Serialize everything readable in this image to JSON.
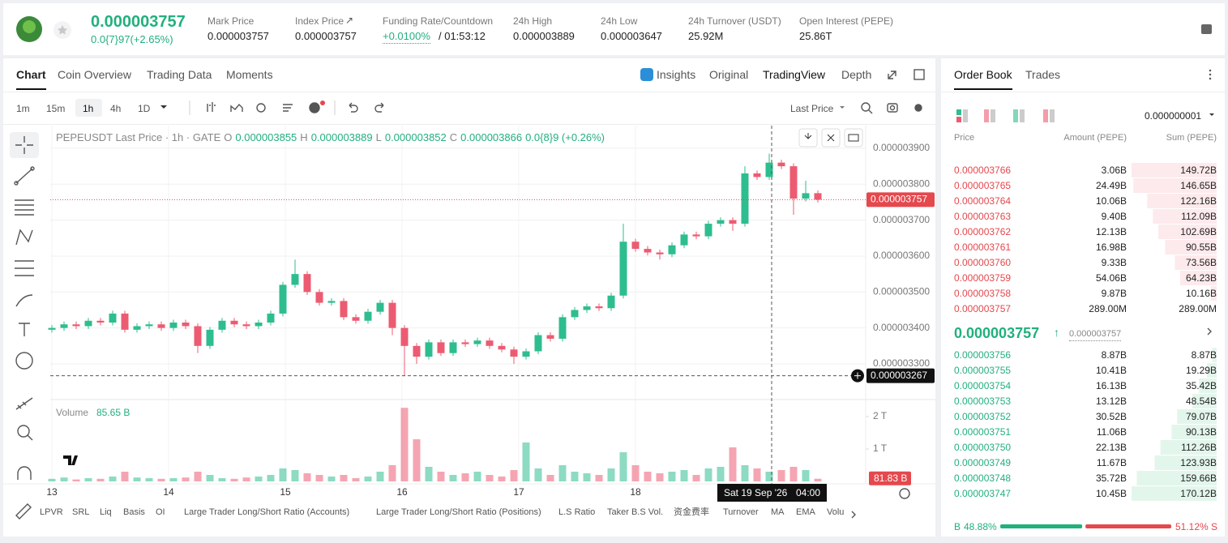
{
  "header": {
    "price": "0.000003757",
    "change": "0.0{7}97(+2.65%)",
    "stats": [
      {
        "label": "Mark Price",
        "value": "0.000003757"
      },
      {
        "label": "Index Price",
        "value": "0.000003757"
      },
      {
        "label": "Funding Rate/Countdown",
        "value": "+0.0100%",
        "countdown": "/ 01:53:12"
      },
      {
        "label": "24h High",
        "value": "0.000003889"
      },
      {
        "label": "24h Low",
        "value": "0.000003647"
      },
      {
        "label": "24h Turnover (USDT)",
        "value": "25.92M"
      },
      {
        "label": "Open Interest (PEPE)",
        "value": "25.86T"
      }
    ]
  },
  "chart_tabs": [
    "Chart",
    "Coin Overview",
    "Trading Data",
    "Moments"
  ],
  "chart_views": [
    "Insights",
    "Original",
    "TradingView",
    "Depth"
  ],
  "intervals": [
    "1m",
    "15m",
    "1h",
    "4h",
    "1D"
  ],
  "price_type": "Last Price",
  "legend": {
    "title": "PEPEUSDT Last Price · 1h · GATE",
    "ohlc": [
      {
        "key": "O",
        "value": "0.000003855"
      },
      {
        "key": "H",
        "value": "0.000003889"
      },
      {
        "key": "L",
        "value": "0.000003852"
      },
      {
        "key": "C",
        "value": "0.000003866"
      }
    ],
    "change": "0.0{8}9 (+0.26%)"
  },
  "volume_legend": {
    "label": "Volume",
    "value": "85.65 B"
  },
  "chart_data": {
    "type": "candlestick",
    "up_color": "#2ebd8f",
    "down_color": "#ec5b72",
    "open": [
      3.395e-06,
      3.4e-06,
      3.41e-06,
      3.405e-06,
      3.42e-06,
      3.415e-06,
      3.44e-06,
      3.395e-06,
      3.405e-06,
      3.41e-06,
      3.4e-06,
      3.415e-06,
      3.405e-06,
      3.35e-06,
      3.395e-06,
      3.42e-06,
      3.41e-06,
      3.405e-06,
      3.415e-06,
      3.44e-06,
      3.52e-06,
      3.55e-06,
      3.5e-06,
      3.47e-06,
      3.475e-06,
      3.43e-06,
      3.42e-06,
      3.445e-06,
      3.47e-06,
      3.4e-06,
      3.35e-06,
      3.32e-06,
      3.36e-06,
      3.33e-06,
      3.36e-06,
      3.355e-06,
      3.365e-06,
      3.35e-06,
      3.34e-06,
      3.32e-06,
      3.335e-06,
      3.38e-06,
      3.37e-06,
      3.43e-06,
      3.45e-06,
      3.46e-06,
      3.455e-06,
      3.49e-06,
      3.64e-06,
      3.62e-06,
      3.61e-06,
      3.605e-06,
      3.63e-06,
      3.66e-06,
      3.655e-06,
      3.69e-06,
      3.7e-06,
      3.69e-06,
      3.83e-06,
      3.82e-06,
      3.86e-06,
      3.85e-06,
      3.76e-06,
      3.775e-06
    ],
    "high": [
      3.408e-06,
      3.418e-06,
      3.418e-06,
      3.428e-06,
      3.428e-06,
      3.448e-06,
      3.448e-06,
      3.413e-06,
      3.418e-06,
      3.418e-06,
      3.423e-06,
      3.423e-06,
      3.413e-06,
      3.403e-06,
      3.428e-06,
      3.428e-06,
      3.418e-06,
      3.423e-06,
      3.448e-06,
      3.528e-06,
      3.59e-06,
      3.558e-06,
      3.508e-06,
      3.483e-06,
      3.483e-06,
      3.438e-06,
      3.453e-06,
      3.478e-06,
      3.478e-06,
      3.408e-06,
      3.358e-06,
      3.368e-06,
      3.368e-06,
      3.368e-06,
      3.368e-06,
      3.373e-06,
      3.373e-06,
      3.358e-06,
      3.348e-06,
      3.343e-06,
      3.388e-06,
      3.388e-06,
      3.438e-06,
      3.458e-06,
      3.468e-06,
      3.468e-06,
      3.498e-06,
      3.69e-06,
      3.648e-06,
      3.628e-06,
      3.618e-06,
      3.638e-06,
      3.668e-06,
      3.668e-06,
      3.698e-06,
      3.708e-06,
      3.708e-06,
      3.85e-06,
      3.838e-06,
      3.885e-06,
      3.868e-06,
      3.858e-06,
      3.81e-06,
      3.783e-06
    ],
    "low": [
      3.387e-06,
      3.392e-06,
      3.397e-06,
      3.397e-06,
      3.407e-06,
      3.407e-06,
      3.387e-06,
      3.387e-06,
      3.397e-06,
      3.392e-06,
      3.392e-06,
      3.397e-06,
      3.33e-06,
      3.342e-06,
      3.387e-06,
      3.402e-06,
      3.397e-06,
      3.397e-06,
      3.407e-06,
      3.432e-06,
      3.512e-06,
      3.492e-06,
      3.462e-06,
      3.462e-06,
      3.422e-06,
      3.412e-06,
      3.412e-06,
      3.437e-06,
      3.38e-06,
      3.267e-06,
      3.3e-06,
      3.312e-06,
      3.322e-06,
      3.322e-06,
      3.347e-06,
      3.347e-06,
      3.342e-06,
      3.332e-06,
      3.3e-06,
      3.312e-06,
      3.327e-06,
      3.362e-06,
      3.362e-06,
      3.422e-06,
      3.442e-06,
      3.447e-06,
      3.447e-06,
      3.482e-06,
      3.612e-06,
      3.602e-06,
      3.59e-06,
      3.597e-06,
      3.622e-06,
      3.647e-06,
      3.647e-06,
      3.682e-06,
      3.67e-06,
      3.682e-06,
      3.812e-06,
      3.812e-06,
      3.842e-06,
      3.715e-06,
      3.752e-06,
      3.749e-06
    ],
    "close": [
      3.4e-06,
      3.41e-06,
      3.405e-06,
      3.42e-06,
      3.415e-06,
      3.44e-06,
      3.395e-06,
      3.405e-06,
      3.41e-06,
      3.4e-06,
      3.415e-06,
      3.405e-06,
      3.35e-06,
      3.395e-06,
      3.42e-06,
      3.41e-06,
      3.405e-06,
      3.415e-06,
      3.44e-06,
      3.52e-06,
      3.55e-06,
      3.5e-06,
      3.47e-06,
      3.475e-06,
      3.43e-06,
      3.42e-06,
      3.445e-06,
      3.47e-06,
      3.4e-06,
      3.35e-06,
      3.32e-06,
      3.36e-06,
      3.33e-06,
      3.36e-06,
      3.355e-06,
      3.365e-06,
      3.35e-06,
      3.34e-06,
      3.32e-06,
      3.335e-06,
      3.38e-06,
      3.37e-06,
      3.43e-06,
      3.45e-06,
      3.46e-06,
      3.455e-06,
      3.49e-06,
      3.64e-06,
      3.62e-06,
      3.61e-06,
      3.605e-06,
      3.63e-06,
      3.66e-06,
      3.655e-06,
      3.69e-06,
      3.7e-06,
      3.69e-06,
      3.83e-06,
      3.82e-06,
      3.86e-06,
      3.85e-06,
      3.76e-06,
      3.775e-06,
      3.757e-06
    ],
    "volume": [
      0.08,
      0.12,
      0.06,
      0.1,
      0.08,
      0.15,
      0.3,
      0.12,
      0.1,
      0.08,
      0.1,
      0.12,
      0.3,
      0.2,
      0.1,
      0.08,
      0.12,
      0.15,
      0.2,
      0.4,
      0.35,
      0.25,
      0.2,
      0.15,
      0.2,
      0.1,
      0.15,
      0.3,
      0.5,
      2.27,
      1.3,
      0.45,
      0.3,
      0.2,
      0.25,
      0.3,
      0.2,
      0.15,
      0.35,
      1.2,
      0.4,
      0.2,
      0.5,
      0.3,
      0.25,
      0.2,
      0.4,
      0.9,
      0.5,
      0.3,
      0.25,
      0.3,
      0.35,
      0.2,
      0.4,
      0.45,
      1.05,
      0.5,
      0.4,
      0.3,
      0.35,
      0.45,
      0.35,
      0.08183
    ],
    "ylim": [
      3.203e-06,
      3.963e-06
    ],
    "yticks": [
      {
        "value": 3.9e-06,
        "label": "0.000003900"
      },
      {
        "value": 3.8e-06,
        "label": "0.000003800"
      },
      {
        "value": 3.7e-06,
        "label": "0.000003700"
      },
      {
        "value": 3.6e-06,
        "label": "0.000003600"
      },
      {
        "value": 3.5e-06,
        "label": "0.000003500"
      },
      {
        "value": 3.4e-06,
        "label": "0.000003400"
      },
      {
        "value": 3.3e-06,
        "label": "0.000003300"
      }
    ],
    "price_markers": [
      {
        "value": 3.757e-06,
        "label": "0.000003757"
      },
      {
        "value": 3.267e-06,
        "label": "0.000003267"
      }
    ],
    "volume_ylim": [
      0,
      2.4
    ],
    "volume_yticks": [
      {
        "value": 2,
        "label": "2 T"
      },
      {
        "value": 1,
        "label": "1 T"
      }
    ],
    "volume_marker": {
      "value": 0.08183,
      "label": "81.83 B"
    },
    "x_labels": [
      "13",
      "14",
      "15",
      "16",
      "17",
      "18"
    ],
    "crosshair_date": "Sat 19 Sep '26",
    "crosshair_time": "04:00"
  },
  "indicators": [
    "LPVR",
    "SRL",
    "Liq",
    "Basis",
    "OI",
    "Large Trader Long/Short Ratio (Accounts)",
    "Large Trader Long/Short Ratio (Positions)",
    "L.S Ratio",
    "Taker B.S Vol.",
    "资金费率",
    "Turnover",
    "MA",
    "EMA",
    "Volu"
  ],
  "order_book": {
    "tabs": [
      "Order Book",
      "Trades"
    ],
    "precision": "0.000000001",
    "columns": [
      "Price",
      "Amount (PEPE)",
      "Sum (PEPE)"
    ],
    "asks": [
      [
        "0.000003766",
        "3.06B",
        "149.72B"
      ],
      [
        "0.000003765",
        "24.49B",
        "146.65B"
      ],
      [
        "0.000003764",
        "10.06B",
        "122.16B"
      ],
      [
        "0.000003763",
        "9.40B",
        "112.09B"
      ],
      [
        "0.000003762",
        "12.13B",
        "102.69B"
      ],
      [
        "0.000003761",
        "16.98B",
        "90.55B"
      ],
      [
        "0.000003760",
        "9.33B",
        "73.56B"
      ],
      [
        "0.000003759",
        "54.06B",
        "64.23B"
      ],
      [
        "0.000003758",
        "9.87B",
        "10.16B"
      ],
      [
        "0.000003757",
        "289.00M",
        "289.00M"
      ]
    ],
    "last": "0.000003757",
    "mark": "0.000003757",
    "bids": [
      [
        "0.000003756",
        "8.87B",
        "8.87B"
      ],
      [
        "0.000003755",
        "10.41B",
        "19.29B"
      ],
      [
        "0.000003754",
        "16.13B",
        "35.42B"
      ],
      [
        "0.000003753",
        "13.12B",
        "48.54B"
      ],
      [
        "0.000003752",
        "30.52B",
        "79.07B"
      ],
      [
        "0.000003751",
        "11.06B",
        "90.13B"
      ],
      [
        "0.000003750",
        "22.13B",
        "112.26B"
      ],
      [
        "0.000003749",
        "11.67B",
        "123.93B"
      ],
      [
        "0.000003748",
        "35.72B",
        "159.66B"
      ],
      [
        "0.000003747",
        "10.45B",
        "170.12B"
      ]
    ],
    "buy": "B",
    "buy_ratio": "48.88%",
    "sell_ratio": "51.12%",
    "sell": "S"
  }
}
